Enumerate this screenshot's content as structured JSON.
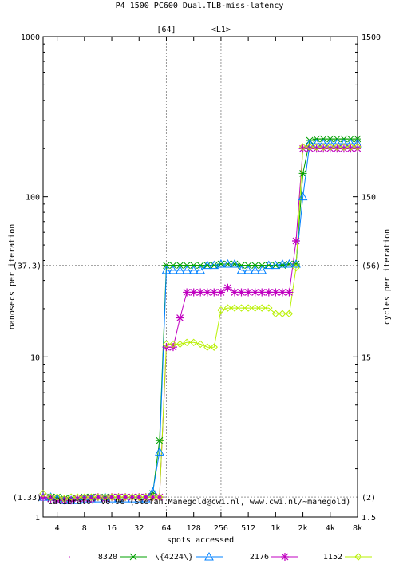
{
  "chart_data": {
    "type": "line",
    "title": "P4_1500_PC600_Dual.TLB-miss-latency",
    "xlabel": "spots accessed",
    "ylabel": "nanosecs per iteration",
    "y2label": "cycles per iteration",
    "scale": "log-log",
    "x_ticks": [
      "4",
      "8",
      "16",
      "32",
      "64",
      "128",
      "256",
      "512",
      "1k",
      "2k",
      "4k",
      "8k"
    ],
    "x_tick_values": [
      4,
      8,
      16,
      32,
      64,
      128,
      256,
      512,
      1024,
      2048,
      4096,
      8192
    ],
    "xlim": [
      2.8,
      8192
    ],
    "ylim": [
      1,
      1000
    ],
    "y_ticks": [
      "1",
      "10",
      "100",
      "1000"
    ],
    "y_tick_values": [
      1,
      10,
      100,
      1000
    ],
    "y_ref_labels": [
      "(1.33)",
      "(37.3)"
    ],
    "y_ref_values": [
      1.33,
      37.3
    ],
    "y2_ticks": [
      "1.5",
      "15",
      "150",
      "1500"
    ],
    "y2_tick_values": [
      1,
      10,
      100,
      1000
    ],
    "y2_ref_labels": [
      "(2)",
      "(56)"
    ],
    "top_markers": [
      {
        "label": "[64]",
        "x": 64
      },
      {
        "label": "<L1>",
        "x": 256
      }
    ],
    "annotation": "Calibrator v0.9e (Stefan.Manegold@cwi.nl, www.cwi.nl/~manegold)",
    "series": [
      {
        "name": "8320",
        "color": "#00a000",
        "marker": "x",
        "points": [
          [
            2.8,
            1.33
          ],
          [
            3.4,
            1.33
          ],
          [
            4,
            1.33
          ],
          [
            4.8,
            1.3
          ],
          [
            5.7,
            1.3
          ],
          [
            6.7,
            1.3
          ],
          [
            8,
            1.33
          ],
          [
            9.5,
            1.33
          ],
          [
            11.3,
            1.33
          ],
          [
            13.5,
            1.33
          ],
          [
            16,
            1.33
          ],
          [
            19,
            1.33
          ],
          [
            22.6,
            1.33
          ],
          [
            26.9,
            1.33
          ],
          [
            32,
            1.33
          ],
          [
            38,
            1.33
          ],
          [
            45.3,
            1.4
          ],
          [
            53.8,
            3.0
          ],
          [
            64,
            37.3
          ],
          [
            76,
            37.3
          ],
          [
            90.5,
            37.3
          ],
          [
            107.6,
            37.3
          ],
          [
            128,
            37.3
          ],
          [
            152,
            37.3
          ],
          [
            181,
            37.3
          ],
          [
            215,
            37.3
          ],
          [
            256,
            38
          ],
          [
            304,
            38
          ],
          [
            362,
            38
          ],
          [
            430,
            37.3
          ],
          [
            512,
            37.3
          ],
          [
            609,
            37.3
          ],
          [
            724,
            37.3
          ],
          [
            861,
            37.3
          ],
          [
            1024,
            37.3
          ],
          [
            1218,
            37.3
          ],
          [
            1448,
            38
          ],
          [
            1722,
            38
          ],
          [
            2048,
            140
          ],
          [
            2435,
            225
          ],
          [
            2896,
            230
          ],
          [
            3444,
            230
          ],
          [
            4096,
            230
          ],
          [
            4871,
            230
          ],
          [
            5793,
            230
          ],
          [
            6889,
            230
          ],
          [
            8192,
            230
          ]
        ]
      },
      {
        "name": "\\{4224\\}",
        "color": "#0080ff",
        "marker": "triangle",
        "points": [
          [
            2.8,
            1.33
          ],
          [
            3.4,
            1.33
          ],
          [
            4,
            1.3
          ],
          [
            4.8,
            1.27
          ],
          [
            5.7,
            1.27
          ],
          [
            6.7,
            1.27
          ],
          [
            8,
            1.3
          ],
          [
            9.5,
            1.3
          ],
          [
            11.3,
            1.3
          ],
          [
            13.5,
            1.33
          ],
          [
            16,
            1.3
          ],
          [
            19,
            1.3
          ],
          [
            22.6,
            1.3
          ],
          [
            26.9,
            1.3
          ],
          [
            32,
            1.3
          ],
          [
            38,
            1.3
          ],
          [
            45.3,
            1.43
          ],
          [
            53.8,
            2.55
          ],
          [
            64,
            34.7
          ],
          [
            76,
            34.7
          ],
          [
            90.5,
            34.7
          ],
          [
            107.6,
            34.7
          ],
          [
            128,
            34.7
          ],
          [
            152,
            34.7
          ],
          [
            181,
            37.3
          ],
          [
            215,
            37.3
          ],
          [
            256,
            38
          ],
          [
            304,
            38
          ],
          [
            362,
            38
          ],
          [
            430,
            34.7
          ],
          [
            512,
            34.7
          ],
          [
            609,
            34.7
          ],
          [
            724,
            34.7
          ],
          [
            861,
            37.3
          ],
          [
            1024,
            37.3
          ],
          [
            1218,
            38
          ],
          [
            1448,
            38
          ],
          [
            1722,
            38
          ],
          [
            2048,
            100
          ],
          [
            2435,
            215
          ],
          [
            2896,
            215
          ],
          [
            3444,
            215
          ],
          [
            4096,
            215
          ],
          [
            4871,
            215
          ],
          [
            5793,
            215
          ],
          [
            6889,
            215
          ],
          [
            8192,
            215
          ]
        ]
      },
      {
        "name": "2176",
        "color": "#c000c0",
        "marker": "star",
        "points": [
          [
            2.8,
            1.33
          ],
          [
            3.4,
            1.3
          ],
          [
            4,
            1.27
          ],
          [
            4.8,
            1.27
          ],
          [
            5.7,
            1.27
          ],
          [
            6.7,
            1.3
          ],
          [
            8,
            1.3
          ],
          [
            9.5,
            1.3
          ],
          [
            11.3,
            1.33
          ],
          [
            13.5,
            1.3
          ],
          [
            16,
            1.33
          ],
          [
            19,
            1.33
          ],
          [
            22.6,
            1.33
          ],
          [
            26.9,
            1.33
          ],
          [
            32,
            1.33
          ],
          [
            38,
            1.33
          ],
          [
            45.3,
            1.33
          ],
          [
            53.8,
            1.33
          ],
          [
            64,
            11.5
          ],
          [
            76,
            11.5
          ],
          [
            90.5,
            17.5
          ],
          [
            107.6,
            25.3
          ],
          [
            128,
            25.3
          ],
          [
            152,
            25.3
          ],
          [
            181,
            25.3
          ],
          [
            215,
            25.3
          ],
          [
            256,
            25.3
          ],
          [
            304,
            27
          ],
          [
            362,
            25.3
          ],
          [
            430,
            25.3
          ],
          [
            512,
            25.3
          ],
          [
            609,
            25.3
          ],
          [
            724,
            25.3
          ],
          [
            861,
            25.3
          ],
          [
            1024,
            25.3
          ],
          [
            1218,
            25.3
          ],
          [
            1448,
            25.3
          ],
          [
            1722,
            53
          ],
          [
            2048,
            200
          ],
          [
            2435,
            200
          ],
          [
            2896,
            200
          ],
          [
            3444,
            200
          ],
          [
            4096,
            200
          ],
          [
            4871,
            200
          ],
          [
            5793,
            200
          ],
          [
            6889,
            200
          ],
          [
            8192,
            200
          ]
        ]
      },
      {
        "name": "1152",
        "color": "#b8f000",
        "marker": "diamond",
        "points": [
          [
            2.8,
            1.4
          ],
          [
            3.4,
            1.33
          ],
          [
            4,
            1.33
          ],
          [
            4.8,
            1.3
          ],
          [
            5.7,
            1.33
          ],
          [
            6.7,
            1.33
          ],
          [
            8,
            1.33
          ],
          [
            9.5,
            1.33
          ],
          [
            11.3,
            1.33
          ],
          [
            13.5,
            1.33
          ],
          [
            16,
            1.33
          ],
          [
            19,
            1.33
          ],
          [
            22.6,
            1.33
          ],
          [
            26.9,
            1.33
          ],
          [
            32,
            1.33
          ],
          [
            38,
            1.33
          ],
          [
            45.3,
            1.33
          ],
          [
            53.8,
            1.33
          ],
          [
            64,
            12
          ],
          [
            76,
            12
          ],
          [
            90.5,
            12
          ],
          [
            107.6,
            12.3
          ],
          [
            128,
            12.3
          ],
          [
            152,
            12
          ],
          [
            181,
            11.5
          ],
          [
            215,
            11.5
          ],
          [
            256,
            19.6
          ],
          [
            304,
            20.2
          ],
          [
            362,
            20.2
          ],
          [
            430,
            20.2
          ],
          [
            512,
            20.2
          ],
          [
            609,
            20.2
          ],
          [
            724,
            20.2
          ],
          [
            861,
            20.2
          ],
          [
            1024,
            18.6
          ],
          [
            1218,
            18.6
          ],
          [
            1448,
            18.6
          ],
          [
            1722,
            36
          ],
          [
            2048,
            205
          ],
          [
            2435,
            205
          ],
          [
            2896,
            205
          ],
          [
            3444,
            205
          ],
          [
            4096,
            205
          ],
          [
            4871,
            205
          ],
          [
            5793,
            205
          ],
          [
            6889,
            205
          ],
          [
            8192,
            205
          ]
        ]
      }
    ]
  }
}
